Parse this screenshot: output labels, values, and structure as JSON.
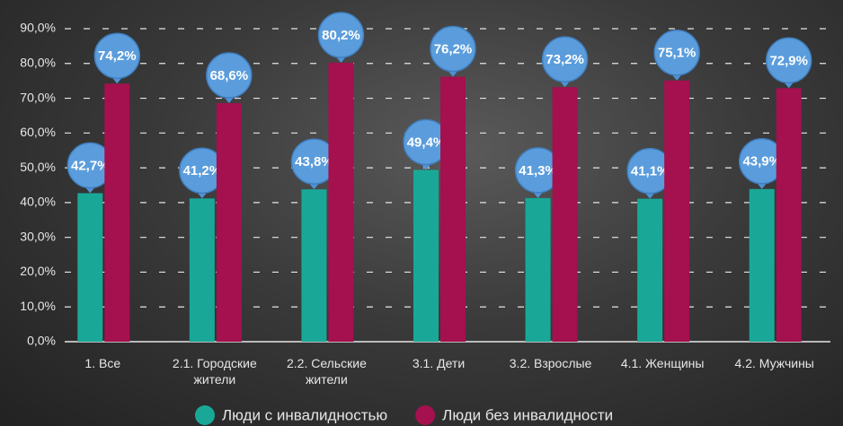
{
  "chart_data": {
    "type": "bar",
    "categories": [
      "1. Все",
      "2.1. Городские жители",
      "2.2. Сельские жители",
      "3.1. Дети",
      "3.2. Взрослые",
      "4.1. Женщины",
      "4.2. Мужчины"
    ],
    "series": [
      {
        "name": "Люди с инвалидностью",
        "color": "#19a898",
        "values": [
          42.7,
          41.2,
          43.8,
          49.4,
          41.3,
          41.1,
          43.9
        ],
        "value_labels": [
          "42,7%",
          "41,2%",
          "43,8%",
          "49,4%",
          "41,3%",
          "41,1%",
          "43,9%"
        ]
      },
      {
        "name": "Люди без инвалидности",
        "color": "#a5104e",
        "values": [
          74.2,
          68.6,
          80.2,
          76.2,
          73.2,
          75.1,
          72.9
        ],
        "value_labels": [
          "74,2%",
          "68,6%",
          "80,2%",
          "76,2%",
          "73,2%",
          "75,1%",
          "72,9%"
        ]
      }
    ],
    "ylim": [
      0,
      90
    ],
    "yticks": [
      {
        "value": 0,
        "label": "0,0%"
      },
      {
        "value": 10,
        "label": "10,0%"
      },
      {
        "value": 20,
        "label": "20,0%"
      },
      {
        "value": 30,
        "label": "30,0%"
      },
      {
        "value": 40,
        "label": "40,0%"
      },
      {
        "value": 50,
        "label": "50,0%"
      },
      {
        "value": 60,
        "label": "60,0%"
      },
      {
        "value": 70,
        "label": "70,0%"
      },
      {
        "value": 80,
        "label": "80,0%"
      },
      {
        "value": 90,
        "label": "90,0%"
      }
    ],
    "grid": true
  }
}
